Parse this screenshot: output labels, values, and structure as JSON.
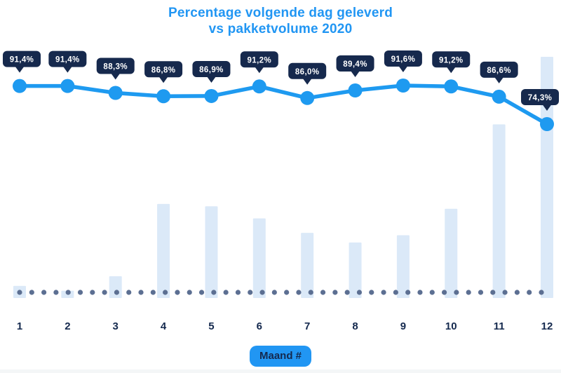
{
  "header": {
    "title_line1": "Percentage volgende dag geleverd",
    "title_line2": "vs pakketvolume 2020"
  },
  "xaxis": {
    "label": "Maand #"
  },
  "colors": {
    "accent_blue": "#2196F3",
    "line_blue": "#1E9AF0",
    "badge_navy": "#16294D",
    "axis_label_navy": "#14294E",
    "dot_slate": "#5C6F92",
    "bar_light_blue": "#DBE9F8",
    "badge_text_white": "#FFFFFF"
  },
  "chart_data": {
    "type": "line",
    "title": "Percentage volgende dag geleverd vs pakketvolume 2020",
    "xlabel": "Maand #",
    "ylabel": "",
    "categories": [
      "1",
      "2",
      "3",
      "4",
      "5",
      "6",
      "7",
      "8",
      "9",
      "10",
      "11",
      "12"
    ],
    "legend": "none",
    "grid": false,
    "yaxis_visible": false,
    "series": [
      {
        "name": "percentage-volgende-dag-geleverd",
        "type": "line",
        "unit": "%",
        "values": [
          91.4,
          91.4,
          88.3,
          86.8,
          86.9,
          91.2,
          86.0,
          89.4,
          91.6,
          91.2,
          86.6,
          74.3
        ],
        "labels": [
          "91,4%",
          "91,4%",
          "88,3%",
          "86,8%",
          "86,9%",
          "91,2%",
          "86,0%",
          "89,4%",
          "91,6%",
          "91,2%",
          "86,6%",
          "74,3%"
        ]
      },
      {
        "name": "pakketvolume",
        "type": "bar",
        "unit": "relative, december = 100 (no numeric axis shown)",
        "values": [
          5,
          3,
          9,
          39,
          38,
          33,
          27,
          23,
          26,
          37,
          72,
          100
        ]
      }
    ]
  }
}
